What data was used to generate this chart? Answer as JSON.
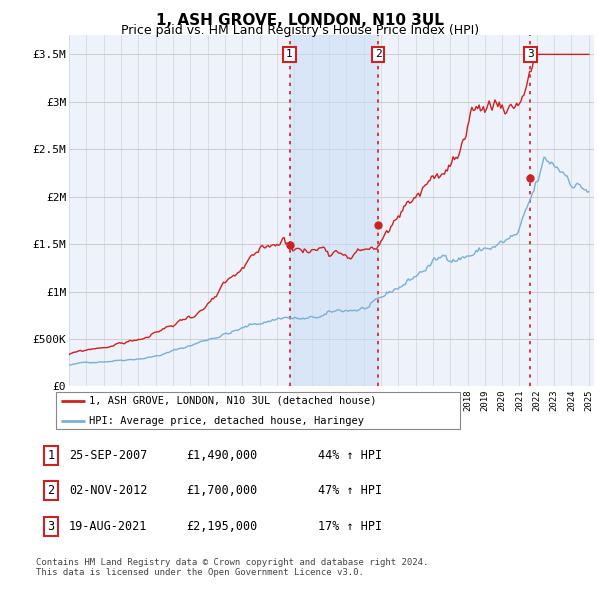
{
  "title": "1, ASH GROVE, LONDON, N10 3UL",
  "subtitle": "Price paid vs. HM Land Registry's House Price Index (HPI)",
  "title_fontsize": 11,
  "subtitle_fontsize": 9,
  "ylabel_ticks": [
    "£0",
    "£500K",
    "£1M",
    "£1.5M",
    "£2M",
    "£2.5M",
    "£3M",
    "£3.5M"
  ],
  "ytick_values": [
    0,
    500000,
    1000000,
    1500000,
    2000000,
    2500000,
    3000000,
    3500000
  ],
  "ylim": [
    0,
    3700000
  ],
  "xlim_start": 1995.0,
  "xlim_end": 2025.3,
  "background_color": "#ffffff",
  "plot_bg_color": "#eef2fa",
  "grid_color": "#cccccc",
  "hpi_line_color": "#7bafd4",
  "price_line_color": "#cc2222",
  "shade_color": "#ccdff5",
  "transaction_dates": [
    2007.73,
    2012.84,
    2021.63
  ],
  "transaction_prices": [
    1490000,
    1700000,
    2195000
  ],
  "transaction_labels": [
    "1",
    "2",
    "3"
  ],
  "vline_color": "#cc2222",
  "vline_style": "--",
  "shade_alpha": 0.6,
  "legend_label_price": "1, ASH GROVE, LONDON, N10 3UL (detached house)",
  "legend_label_hpi": "HPI: Average price, detached house, Haringey",
  "table_rows": [
    {
      "num": "1",
      "date": "25-SEP-2007",
      "price": "£1,490,000",
      "change": "44% ↑ HPI"
    },
    {
      "num": "2",
      "date": "02-NOV-2012",
      "price": "£1,700,000",
      "change": "47% ↑ HPI"
    },
    {
      "num": "3",
      "date": "19-AUG-2021",
      "price": "£2,195,000",
      "change": "17% ↑ HPI"
    }
  ],
  "footer": "Contains HM Land Registry data © Crown copyright and database right 2024.\nThis data is licensed under the Open Government Licence v3.0.",
  "hpi_seed": 42,
  "price_seed": 99
}
